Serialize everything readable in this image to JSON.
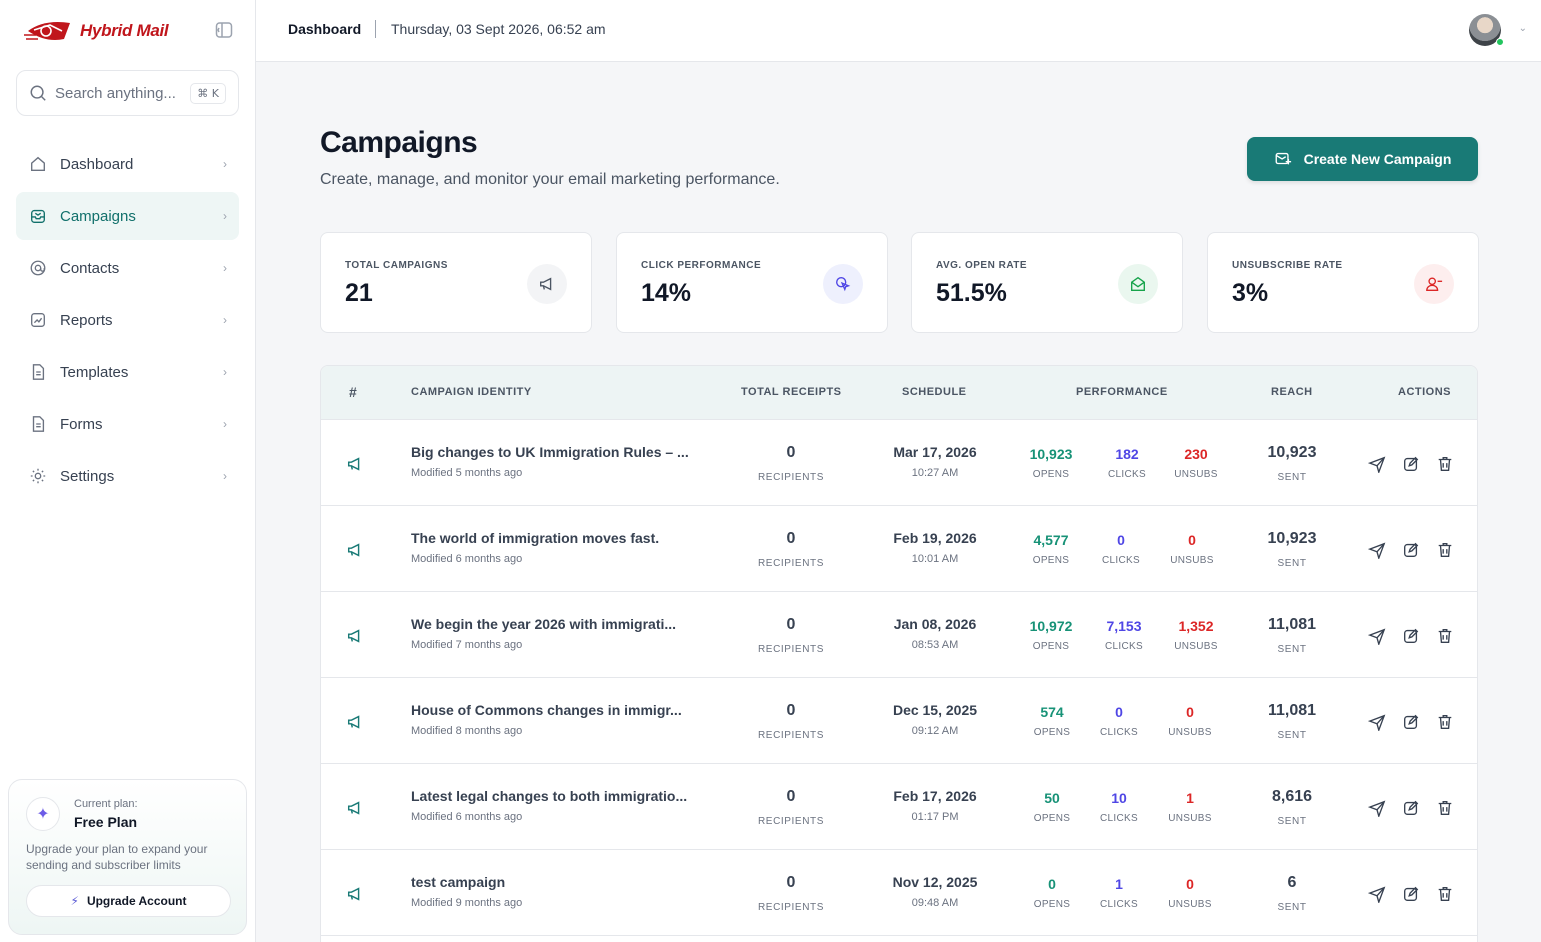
{
  "brand": {
    "name": "Hybrid Mail"
  },
  "search": {
    "placeholder": "Search anything...",
    "shortcut": "⌘ K"
  },
  "nav": [
    {
      "label": "Dashboard",
      "icon": "home-icon"
    },
    {
      "label": "Campaigns",
      "icon": "inbox-icon",
      "active": true
    },
    {
      "label": "Contacts",
      "icon": "at-icon"
    },
    {
      "label": "Reports",
      "icon": "chart-icon"
    },
    {
      "label": "Templates",
      "icon": "file-icon"
    },
    {
      "label": "Forms",
      "icon": "file-icon"
    },
    {
      "label": "Settings",
      "icon": "gear-icon"
    }
  ],
  "plan": {
    "caption": "Current plan:",
    "name": "Free Plan",
    "description": "Upgrade your plan to expand your sending and subscriber limits",
    "button": "Upgrade Account"
  },
  "topbar": {
    "breadcrumb": "Dashboard",
    "datetime": "Thursday, 03 Sept 2026, 06:52 am"
  },
  "header": {
    "title": "Campaigns",
    "subtitle": "Create, manage, and monitor your email marketing performance.",
    "create_button": "Create New Campaign"
  },
  "stats": [
    {
      "label": "TOTAL CAMPAIGNS",
      "value": "21",
      "icon": "megaphone-icon",
      "color": "#6b7280",
      "bg": "#f3f4f6"
    },
    {
      "label": "CLICK PERFORMANCE",
      "value": "14%",
      "icon": "cursor-click-icon",
      "color": "#4f46e5",
      "bg": "#eef0fd"
    },
    {
      "label": "AVG. OPEN RATE",
      "value": "51.5%",
      "icon": "envelope-open-icon",
      "color": "#16a34a",
      "bg": "#eaf7ef"
    },
    {
      "label": "UNSUBSCRIBE RATE",
      "value": "3%",
      "icon": "user-remove-icon",
      "color": "#dc2626",
      "bg": "#fdeeee"
    }
  ],
  "table": {
    "headers": {
      "num": "#",
      "identity": "CAMPAIGN IDENTITY",
      "receipts": "TOTAL RECEIPTS",
      "schedule": "SCHEDULE",
      "performance": "PERFORMANCE",
      "reach": "REACH",
      "actions": "ACTIONS"
    },
    "captions": {
      "recipients": "RECIPIENTS",
      "opens": "OPENS",
      "clicks": "CLICKS",
      "unsubs": "UNSUBS",
      "sent": "SENT"
    },
    "rows": [
      {
        "name": "Big changes to UK Immigration Rules – ...",
        "modified": "Modified 5 months ago",
        "recipients": "0",
        "date": "Mar 17, 2026",
        "time": "10:27 AM",
        "opens": "10,923",
        "clicks": "182",
        "unsubs": "230",
        "sent": "10,923"
      },
      {
        "name": "The world of immigration moves fast.",
        "modified": "Modified 6 months ago",
        "recipients": "0",
        "date": "Feb 19, 2026",
        "time": "10:01 AM",
        "opens": "4,577",
        "clicks": "0",
        "unsubs": "0",
        "sent": "10,923"
      },
      {
        "name": "We begin the year 2026 with immigrati...",
        "modified": "Modified 7 months ago",
        "recipients": "0",
        "date": "Jan 08, 2026",
        "time": "08:53 AM",
        "opens": "10,972",
        "clicks": "7,153",
        "unsubs": "1,352",
        "sent": "11,081"
      },
      {
        "name": "House of Commons changes in immigr...",
        "modified": "Modified 8 months ago",
        "recipients": "0",
        "date": "Dec 15, 2025",
        "time": "09:12 AM",
        "opens": "574",
        "clicks": "0",
        "unsubs": "0",
        "sent": "11,081"
      },
      {
        "name": "Latest legal changes to both immigratio...",
        "modified": "Modified 6 months ago",
        "recipients": "0",
        "date": "Feb 17, 2026",
        "time": "01:17 PM",
        "opens": "50",
        "clicks": "10",
        "unsubs": "1",
        "sent": "8,616"
      },
      {
        "name": "test campaign",
        "modified": "Modified 9 months ago",
        "recipients": "0",
        "date": "Nov 12, 2025",
        "time": "09:48 AM",
        "opens": "0",
        "clicks": "1",
        "unsubs": "0",
        "sent": "6"
      }
    ]
  }
}
